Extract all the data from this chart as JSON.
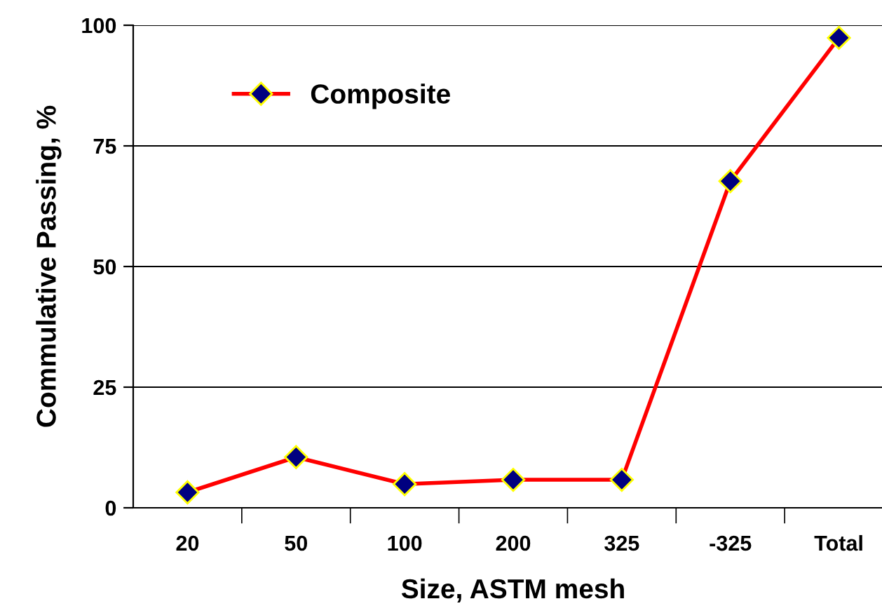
{
  "chart_data": {
    "type": "line",
    "xlabel": "Size, ASTM mesh",
    "ylabel": "Commulative Passing, %",
    "categories": [
      "20",
      "50",
      "100",
      "200",
      "325",
      "-325",
      "Total"
    ],
    "series": [
      {
        "name": "Composite",
        "color": "#ff0000",
        "values": [
          3.2,
          10.5,
          4.9,
          5.8,
          5.8,
          67.7,
          97.4
        ]
      }
    ],
    "ylim": [
      0,
      100
    ],
    "yticks": [
      0,
      25,
      50,
      75,
      100
    ],
    "grid": "y",
    "legend": "top left",
    "marker": "diamond",
    "line_style": "solid"
  }
}
